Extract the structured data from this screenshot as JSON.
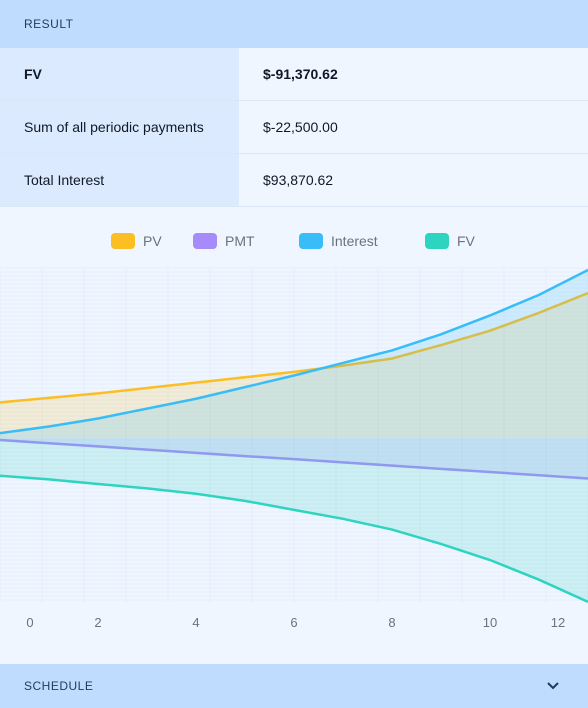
{
  "header": {
    "title": "RESULT"
  },
  "table": {
    "rows": [
      [
        "FV",
        "$-91,370.62"
      ],
      [
        "Sum of all periodic payments",
        "$-22,500.00"
      ],
      [
        "Total Interest",
        "$93,870.62"
      ]
    ]
  },
  "chart_data": {
    "type": "area",
    "x": [
      0,
      1,
      2,
      3,
      4,
      5,
      6,
      7,
      8,
      9,
      10,
      11,
      12
    ],
    "xlim": [
      0,
      12
    ],
    "xticks": [
      0,
      2,
      4,
      6,
      8,
      10,
      12
    ],
    "ylim": [
      -92000,
      95000
    ],
    "series": [
      {
        "name": "PV",
        "color": "#fbbf24",
        "values": [
          20000,
          22500,
          25000,
          28000,
          31000,
          34000,
          37000,
          40500,
          44500,
          52000,
          60000,
          70000,
          81000
        ]
      },
      {
        "name": "PMT",
        "color": "#a78bfa",
        "values": [
          -1000,
          -2800,
          -4600,
          -6400,
          -8200,
          -10000,
          -11700,
          -13500,
          -15300,
          -17100,
          -18900,
          -20700,
          -22500
        ]
      },
      {
        "name": "Interest",
        "color": "#38bdf8",
        "values": [
          2800,
          6500,
          11000,
          16500,
          22000,
          28500,
          35000,
          42000,
          49000,
          58000,
          68500,
          80000,
          93870
        ]
      },
      {
        "name": "FV",
        "color": "#2dd4bf",
        "values": [
          -21000,
          -23000,
          -25600,
          -28000,
          -31000,
          -35000,
          -40000,
          -45000,
          -51000,
          -59000,
          -68000,
          -79000,
          -91370
        ]
      }
    ]
  },
  "footer": {
    "title": "SCHEDULE"
  }
}
